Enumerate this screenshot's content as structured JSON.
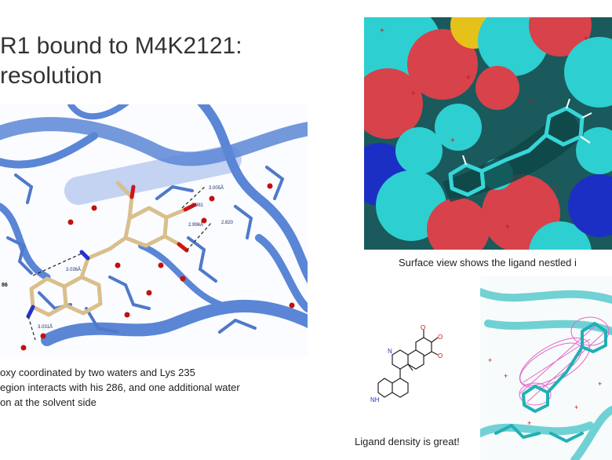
{
  "title": {
    "line1": "R1 bound to M4K2121:",
    "line2": "resolution"
  },
  "main_panel": {
    "distance_labels": [
      "3.036Å",
      "2.996Å",
      "2.820",
      "3.031Å",
      "3.005Å",
      "2.981"
    ],
    "residue_label": "86"
  },
  "captions": {
    "main": [
      "oxy coordinated by two waters and Lys 235",
      "egion interacts with his 286, and one additional water",
      "on at the solvent side"
    ],
    "surface": "Surface view shows the ligand nestled i",
    "density": "Ligand density is great!"
  },
  "ligand_2d": {
    "atom_label": "NH"
  },
  "colors": {
    "protein_ribbon": "#5b86d6",
    "ligand_carbon": "#d9bf8c",
    "oxygen": "#d01515",
    "nitrogen": "#2233cc",
    "surface_cyan": "#2ecfd0",
    "surface_red": "#d7424b",
    "surface_blue": "#1c2fc4",
    "surface_yellow": "#e5c21a",
    "density_mesh": "#e267c9"
  }
}
